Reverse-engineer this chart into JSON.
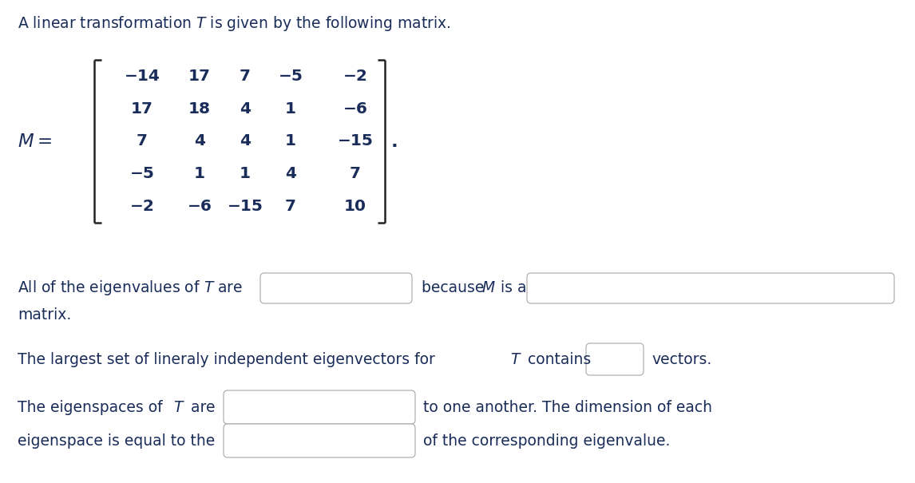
{
  "title_text": "A linear transformation $T$ is given by the following matrix.",
  "M_label": "$M =$",
  "matrix": [
    [
      "−14",
      "17",
      "7",
      "−5",
      "−2"
    ],
    [
      "17",
      "18",
      "4",
      "1",
      "−6"
    ],
    [
      "7",
      "4",
      "4",
      "1",
      "−15"
    ],
    [
      "−5",
      "1",
      "1",
      "4",
      "7"
    ],
    [
      "−2",
      "−6",
      "−15",
      "7",
      "10"
    ]
  ],
  "period": ".",
  "line1_pre": "All of the eigenvalues of $T$ are",
  "line1_mid": "because $M$ is a",
  "line1b": "matrix.",
  "line2_pre": "The largest set of lineraly independent eigenvectors for $T$ contains",
  "line2_post": "vectors.",
  "line3_pre": "The eigenspaces of $T$ are",
  "line3_post": "to one another. The dimension of each",
  "line4_pre": "eigenspace is equal to the",
  "line4_post": "of the corresponding eigenvalue.",
  "bg_color": "#ffffff",
  "text_color": "#1a2d5a",
  "box_edge_color": "#a0a0a0",
  "font_size": 13.5,
  "matrix_font_size": 14.5
}
